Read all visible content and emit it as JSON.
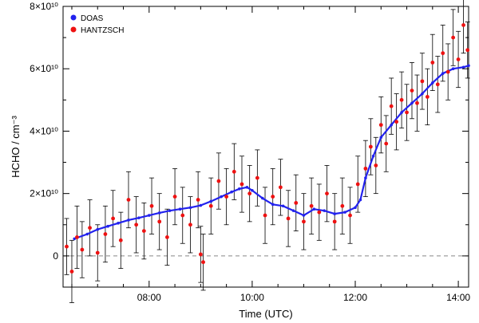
{
  "chart_data": {
    "type": "scatter",
    "title": "",
    "xlabel": "Time (UTC)",
    "ylabel": "HCHO / cm⁻³",
    "xlim": [
      6.33,
      14.2
    ],
    "ylim": [
      -1.0,
      8.0
    ],
    "y_scale_unit": "x10^10",
    "x_ticks": [
      {
        "value": 8,
        "label": "08:00"
      },
      {
        "value": 10,
        "label": "10:00"
      },
      {
        "value": 12,
        "label": "12:00"
      },
      {
        "value": 14,
        "label": "14:00"
      }
    ],
    "y_ticks": [
      {
        "value": 0,
        "label": "0"
      },
      {
        "value": 2,
        "label": "2×10¹⁰"
      },
      {
        "value": 4,
        "label": "4×10¹⁰"
      },
      {
        "value": 6,
        "label": "6×10¹⁰"
      },
      {
        "value": 8,
        "label": "8×10¹⁰"
      }
    ],
    "zero_line": true,
    "legend_position": "top-left",
    "series": [
      {
        "name": "DOAS",
        "color": "#2222ee",
        "style": "line-with-markers",
        "x": [
          6.55,
          6.8,
          7.0,
          7.2,
          7.4,
          7.6,
          7.8,
          8.0,
          8.2,
          8.4,
          8.6,
          8.8,
          9.0,
          9.2,
          9.4,
          9.6,
          9.75,
          9.9,
          10.0,
          10.2,
          10.4,
          10.6,
          10.8,
          11.0,
          11.2,
          11.4,
          11.6,
          11.8,
          12.0,
          12.1,
          12.2,
          12.35,
          12.5,
          12.7,
          12.9,
          13.1,
          13.3,
          13.5,
          13.7,
          13.9,
          14.1,
          14.2
        ],
        "y": [
          0.55,
          0.7,
          0.85,
          0.95,
          1.05,
          1.15,
          1.22,
          1.3,
          1.38,
          1.45,
          1.5,
          1.55,
          1.62,
          1.75,
          1.9,
          2.05,
          2.15,
          2.2,
          2.1,
          1.85,
          1.65,
          1.6,
          1.45,
          1.3,
          1.5,
          1.45,
          1.35,
          1.4,
          1.55,
          1.8,
          2.5,
          3.2,
          3.8,
          4.2,
          4.6,
          4.9,
          5.2,
          5.55,
          5.85,
          6.0,
          6.05,
          6.1
        ]
      },
      {
        "name": "HANTZSCH",
        "color": "#ee1111",
        "style": "points-with-errorbars",
        "points": [
          {
            "x": 6.4,
            "y": 0.3,
            "err": 0.9
          },
          {
            "x": 6.5,
            "y": -0.5,
            "err": 1.0
          },
          {
            "x": 6.6,
            "y": 0.6,
            "err": 1.0
          },
          {
            "x": 6.7,
            "y": 0.2,
            "err": 0.9
          },
          {
            "x": 6.85,
            "y": 0.9,
            "err": 0.9
          },
          {
            "x": 7.0,
            "y": 0.1,
            "err": 0.9
          },
          {
            "x": 7.15,
            "y": 0.7,
            "err": 0.9
          },
          {
            "x": 7.3,
            "y": 1.2,
            "err": 0.9
          },
          {
            "x": 7.45,
            "y": 0.5,
            "err": 0.9
          },
          {
            "x": 7.6,
            "y": 1.8,
            "err": 0.9
          },
          {
            "x": 7.75,
            "y": 1.0,
            "err": 0.9
          },
          {
            "x": 7.9,
            "y": 0.8,
            "err": 0.9
          },
          {
            "x": 8.05,
            "y": 1.6,
            "err": 0.9
          },
          {
            "x": 8.2,
            "y": 1.1,
            "err": 0.9
          },
          {
            "x": 8.35,
            "y": 0.6,
            "err": 0.9
          },
          {
            "x": 8.5,
            "y": 1.9,
            "err": 0.9
          },
          {
            "x": 8.65,
            "y": 1.3,
            "err": 0.9
          },
          {
            "x": 8.8,
            "y": 1.0,
            "err": 0.9
          },
          {
            "x": 8.95,
            "y": 1.8,
            "err": 0.9
          },
          {
            "x": 9.0,
            "y": 0.05,
            "err": 0.9
          },
          {
            "x": 9.05,
            "y": -0.2,
            "err": 0.9
          },
          {
            "x": 9.2,
            "y": 1.6,
            "err": 0.9
          },
          {
            "x": 9.35,
            "y": 2.4,
            "err": 0.9
          },
          {
            "x": 9.5,
            "y": 1.9,
            "err": 0.9
          },
          {
            "x": 9.65,
            "y": 2.7,
            "err": 0.9
          },
          {
            "x": 9.8,
            "y": 2.3,
            "err": 0.9
          },
          {
            "x": 9.95,
            "y": 2.0,
            "err": 0.9
          },
          {
            "x": 10.1,
            "y": 2.5,
            "err": 0.9
          },
          {
            "x": 10.25,
            "y": 1.3,
            "err": 0.9
          },
          {
            "x": 10.4,
            "y": 1.9,
            "err": 0.9
          },
          {
            "x": 10.55,
            "y": 2.2,
            "err": 0.9
          },
          {
            "x": 10.7,
            "y": 1.2,
            "err": 0.9
          },
          {
            "x": 10.85,
            "y": 1.7,
            "err": 0.9
          },
          {
            "x": 11.0,
            "y": 1.1,
            "err": 0.9
          },
          {
            "x": 11.15,
            "y": 1.6,
            "err": 0.9
          },
          {
            "x": 11.3,
            "y": 1.4,
            "err": 0.9
          },
          {
            "x": 11.45,
            "y": 2.0,
            "err": 0.9
          },
          {
            "x": 11.6,
            "y": 1.1,
            "err": 0.9
          },
          {
            "x": 11.75,
            "y": 1.6,
            "err": 0.9
          },
          {
            "x": 11.9,
            "y": 1.3,
            "err": 0.9
          },
          {
            "x": 12.05,
            "y": 2.3,
            "err": 0.9
          },
          {
            "x": 12.2,
            "y": 2.8,
            "err": 0.9
          },
          {
            "x": 12.3,
            "y": 3.5,
            "err": 0.9
          },
          {
            "x": 12.4,
            "y": 2.9,
            "err": 0.9
          },
          {
            "x": 12.5,
            "y": 4.2,
            "err": 0.9
          },
          {
            "x": 12.6,
            "y": 3.6,
            "err": 0.9
          },
          {
            "x": 12.7,
            "y": 4.8,
            "err": 0.9
          },
          {
            "x": 12.8,
            "y": 4.3,
            "err": 0.9
          },
          {
            "x": 12.9,
            "y": 5.0,
            "err": 0.9
          },
          {
            "x": 13.0,
            "y": 4.6,
            "err": 0.9
          },
          {
            "x": 13.1,
            "y": 5.3,
            "err": 0.9
          },
          {
            "x": 13.2,
            "y": 4.9,
            "err": 0.9
          },
          {
            "x": 13.3,
            "y": 5.6,
            "err": 0.9
          },
          {
            "x": 13.4,
            "y": 5.1,
            "err": 0.9
          },
          {
            "x": 13.5,
            "y": 6.2,
            "err": 0.9
          },
          {
            "x": 13.6,
            "y": 5.5,
            "err": 0.9
          },
          {
            "x": 13.7,
            "y": 6.5,
            "err": 0.9
          },
          {
            "x": 13.8,
            "y": 5.9,
            "err": 0.9
          },
          {
            "x": 13.9,
            "y": 7.0,
            "err": 0.9
          },
          {
            "x": 14.0,
            "y": 6.3,
            "err": 0.9
          },
          {
            "x": 14.1,
            "y": 7.4,
            "err": 0.9
          },
          {
            "x": 14.18,
            "y": 6.6,
            "err": 0.9
          }
        ]
      }
    ]
  }
}
